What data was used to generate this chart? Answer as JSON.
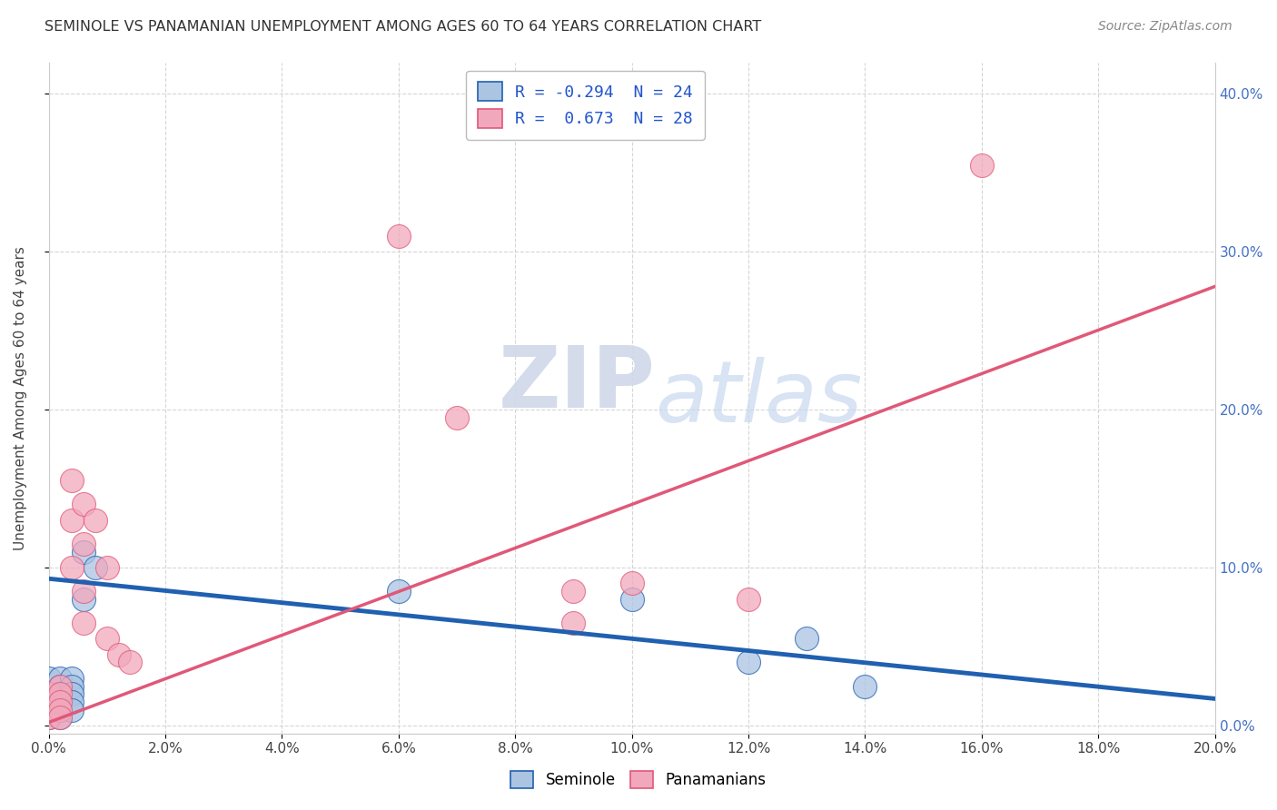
{
  "title": "SEMINOLE VS PANAMANIAN UNEMPLOYMENT AMONG AGES 60 TO 64 YEARS CORRELATION CHART",
  "source": "Source: ZipAtlas.com",
  "xlim": [
    0.0,
    0.2
  ],
  "ylim": [
    -0.005,
    0.42
  ],
  "ylabel": "Unemployment Among Ages 60 to 64 years",
  "legend_label1": "R = -0.294  N = 24",
  "legend_label2": "R =  0.673  N = 28",
  "seminole_color": "#aac4e2",
  "panamanian_color": "#f2a8bc",
  "seminole_line_color": "#2060b0",
  "panamanian_line_color": "#e05878",
  "watermark_zip": "ZIP",
  "watermark_atlas": "atlas",
  "seminole_scatter": [
    [
      0.0,
      0.03
    ],
    [
      0.0,
      0.02
    ],
    [
      0.0,
      0.015
    ],
    [
      0.0,
      0.01
    ],
    [
      0.0,
      0.005
    ],
    [
      0.002,
      0.03
    ],
    [
      0.002,
      0.025
    ],
    [
      0.002,
      0.02
    ],
    [
      0.002,
      0.015
    ],
    [
      0.002,
      0.01
    ],
    [
      0.002,
      0.005
    ],
    [
      0.004,
      0.03
    ],
    [
      0.004,
      0.025
    ],
    [
      0.004,
      0.02
    ],
    [
      0.004,
      0.015
    ],
    [
      0.004,
      0.01
    ],
    [
      0.006,
      0.11
    ],
    [
      0.006,
      0.08
    ],
    [
      0.008,
      0.1
    ],
    [
      0.06,
      0.085
    ],
    [
      0.1,
      0.08
    ],
    [
      0.12,
      0.04
    ],
    [
      0.13,
      0.055
    ],
    [
      0.14,
      0.025
    ]
  ],
  "panamanian_scatter": [
    [
      0.0,
      0.02
    ],
    [
      0.0,
      0.015
    ],
    [
      0.0,
      0.01
    ],
    [
      0.0,
      0.005
    ],
    [
      0.002,
      0.025
    ],
    [
      0.002,
      0.02
    ],
    [
      0.002,
      0.015
    ],
    [
      0.002,
      0.01
    ],
    [
      0.002,
      0.005
    ],
    [
      0.004,
      0.155
    ],
    [
      0.004,
      0.13
    ],
    [
      0.004,
      0.1
    ],
    [
      0.006,
      0.14
    ],
    [
      0.006,
      0.115
    ],
    [
      0.006,
      0.085
    ],
    [
      0.006,
      0.065
    ],
    [
      0.008,
      0.13
    ],
    [
      0.01,
      0.1
    ],
    [
      0.01,
      0.055
    ],
    [
      0.012,
      0.045
    ],
    [
      0.014,
      0.04
    ],
    [
      0.06,
      0.31
    ],
    [
      0.07,
      0.195
    ],
    [
      0.09,
      0.085
    ],
    [
      0.09,
      0.065
    ],
    [
      0.1,
      0.09
    ],
    [
      0.12,
      0.08
    ],
    [
      0.16,
      0.355
    ]
  ],
  "sem_intercept": 0.093,
  "sem_slope": -0.38,
  "pan_intercept": 0.002,
  "pan_slope": 1.38
}
